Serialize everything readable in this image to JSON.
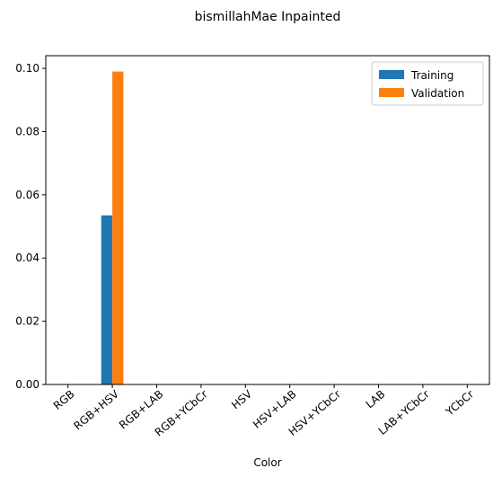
{
  "chart_data": {
    "type": "bar",
    "title": "bismillahMae Inpainted",
    "xlabel": "Color",
    "ylabel": "",
    "categories": [
      "RGB",
      "RGB+HSV",
      "RGB+LAB",
      "RGB+YCbCr",
      "HSV",
      "HSV+LAB",
      "HSV+YCbCr",
      "LAB",
      "LAB+YCbCr",
      "YCbCr"
    ],
    "series": [
      {
        "name": "Training",
        "color": "#1f77b4",
        "values": [
          0,
          0.0535,
          0,
          0,
          0,
          0,
          0,
          0,
          0,
          0
        ]
      },
      {
        "name": "Validation",
        "color": "#ff7f0e",
        "values": [
          0,
          0.099,
          0,
          0,
          0,
          0,
          0,
          0,
          0,
          0
        ]
      }
    ],
    "ylim": [
      0,
      0.104
    ],
    "yticks": [
      0.0,
      0.02,
      0.04,
      0.06,
      0.08,
      0.1
    ],
    "ytick_labels": [
      "0.00",
      "0.02",
      "0.04",
      "0.06",
      "0.08",
      "0.10"
    ],
    "grid": false,
    "legend_position": "top-right"
  }
}
